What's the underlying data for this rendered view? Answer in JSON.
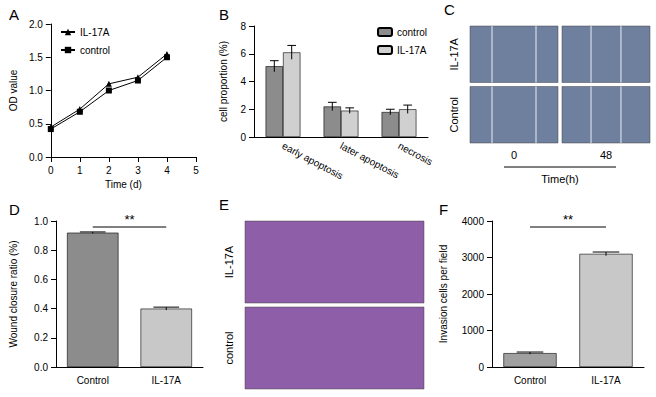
{
  "chart_data": [
    {
      "type": "line",
      "title": "A",
      "xlabel": "Time (d)",
      "ylabel": "OD value",
      "x": [
        0,
        1,
        2,
        3,
        4
      ],
      "series": [
        {
          "name": "IL-17A",
          "color": "#000000",
          "marker": "triangle",
          "values": [
            0.45,
            0.72,
            1.1,
            1.2,
            1.55
          ]
        },
        {
          "name": "control",
          "color": "#000000",
          "marker": "square",
          "values": [
            0.42,
            0.68,
            1.0,
            1.15,
            1.5
          ]
        }
      ],
      "xlim": [
        0,
        5
      ],
      "xticks": [
        0,
        1,
        2,
        3,
        4,
        5
      ],
      "ylim": [
        0,
        2.0
      ],
      "yticks": [
        {
          "value": 0,
          "label": "0.0"
        },
        0.5,
        {
          "value": 1,
          "label": "1.0"
        },
        1.5,
        {
          "value": 2,
          "label": "2.0"
        }
      ],
      "grid": false,
      "legend": "top-left"
    },
    {
      "type": "bar",
      "title": "B",
      "ylabel": "cell proportion (%)",
      "categories": [
        "early apoptosis",
        "later apoptosis",
        "necrosis"
      ],
      "series": [
        {
          "name": "control",
          "color": "#8c8c8c",
          "values": [
            5.1,
            2.2,
            1.8
          ],
          "errors": [
            0.4,
            0.3,
            0.2
          ]
        },
        {
          "name": "IL-17A",
          "color": "#d0d0d0",
          "values": [
            6.1,
            1.9,
            2.0
          ],
          "errors": [
            0.5,
            0.2,
            0.3
          ]
        }
      ],
      "ylim": [
        0,
        8
      ],
      "yticks": [
        0,
        2,
        4,
        6,
        8
      ],
      "grid": false,
      "legend": "top-right"
    },
    {
      "type": "image",
      "title": "C",
      "rows": [
        "IL-17A",
        "Control"
      ],
      "columns": [
        "0",
        "48"
      ],
      "xlabel": "Time(h)",
      "color": "#6f7f9e"
    },
    {
      "type": "bar",
      "title": "D",
      "ylabel": "Wound closure ratio (%)",
      "categories": [
        "Control",
        "IL-17A"
      ],
      "values": [
        0.92,
        0.4
      ],
      "errors": [
        0.005,
        0.01
      ],
      "colors": [
        "#8c8c8c",
        "#c8c8c8"
      ],
      "ylim": [
        0,
        1.0
      ],
      "yticks": [
        {
          "value": 0,
          "label": "0.0"
        },
        0.2,
        0.4,
        0.6,
        0.8,
        {
          "value": 1,
          "label": "1.0"
        }
      ],
      "grid": false,
      "annotation": "**"
    },
    {
      "type": "image",
      "title": "E",
      "rows": [
        "IL-17A",
        "control"
      ],
      "color": "#8e5ea8"
    },
    {
      "type": "bar",
      "title": "F",
      "ylabel": "Invasion cells per field",
      "categories": [
        "Control",
        "IL-17A"
      ],
      "values": [
        380,
        3100
      ],
      "errors": [
        30,
        50
      ],
      "colors": [
        "#a0a0a0",
        "#c8c8c8"
      ],
      "ylim": [
        0,
        4000
      ],
      "yticks": [
        0,
        1000,
        2000,
        3000,
        4000
      ],
      "grid": false,
      "annotation": "**"
    }
  ]
}
